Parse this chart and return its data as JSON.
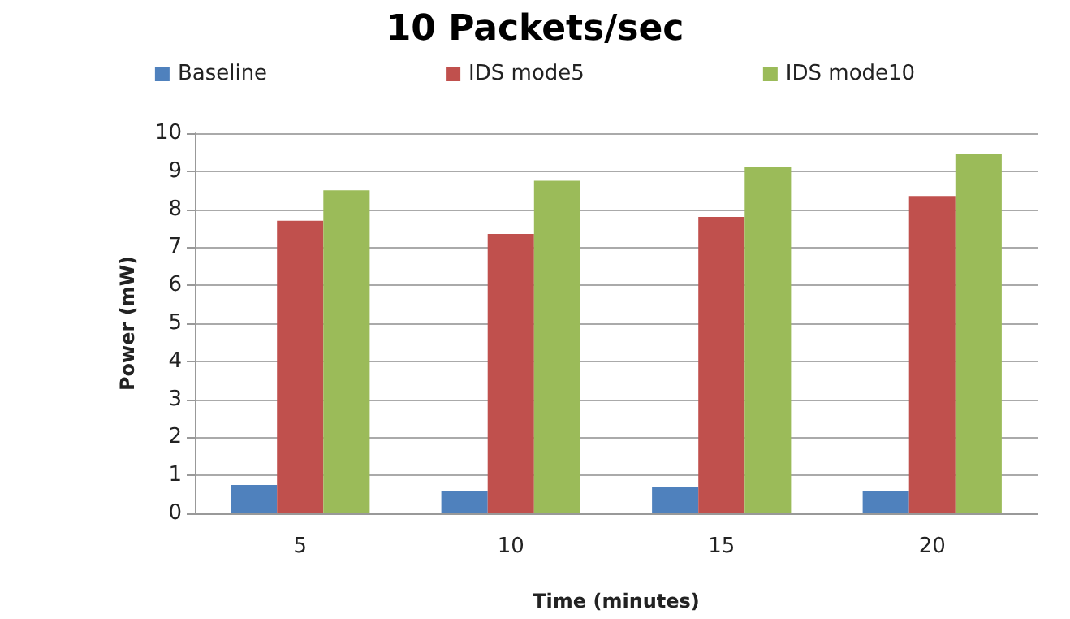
{
  "chart_data": {
    "type": "bar",
    "title": "10 Packets/sec",
    "xlabel": "Time (minutes)",
    "ylabel": "Power (mW)",
    "categories": [
      "5",
      "10",
      "15",
      "20"
    ],
    "series": [
      {
        "name": "Baseline",
        "color": "#4f81bd",
        "values": [
          0.75,
          0.6,
          0.7,
          0.6
        ]
      },
      {
        "name": "IDS mode5",
        "color": "#c0504d",
        "values": [
          7.7,
          7.35,
          7.8,
          8.35
        ]
      },
      {
        "name": "IDS mode10",
        "color": "#9bbb59",
        "values": [
          8.5,
          8.75,
          9.1,
          9.45
        ]
      }
    ],
    "ylim": [
      0,
      10
    ],
    "yticks": [
      0,
      1,
      2,
      3,
      4,
      5,
      6,
      7,
      8,
      9,
      10
    ],
    "grid": "y",
    "legend": "top"
  }
}
